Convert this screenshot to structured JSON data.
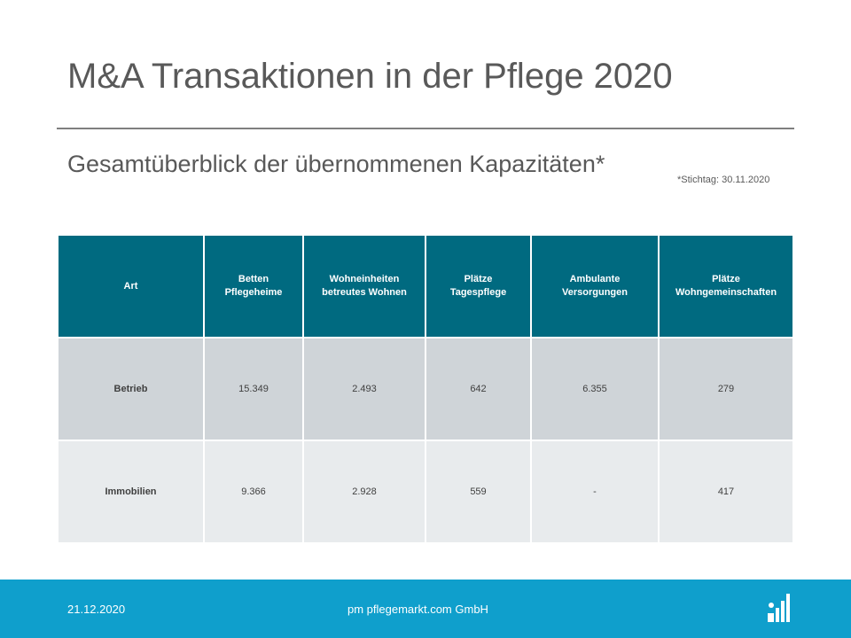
{
  "slide": {
    "title": "M&A Transaktionen in der Pflege 2020",
    "subtitle": "Gesamtüberblick der übernommenen Kapazitäten*",
    "footnote": "*Stichtag: 30.11.2020"
  },
  "table": {
    "headers": [
      [
        "Art"
      ],
      [
        "Betten",
        "Pflegeheime"
      ],
      [
        "Wohneinheiten",
        "betreutes Wohnen"
      ],
      [
        "Plätze",
        "Tagespflege"
      ],
      [
        "Ambulante",
        "Versorgungen"
      ],
      [
        "Plätze",
        "Wohngemeinschaften"
      ]
    ],
    "rows": [
      [
        "Betrieb",
        "15.349",
        "2.493",
        "642",
        "6.355",
        "279"
      ],
      [
        "Immobilien",
        "9.366",
        "2.928",
        "559",
        "-",
        "417"
      ]
    ]
  },
  "footer": {
    "date": "21.12.2020",
    "company": "pm pflegemarkt.com GmbH",
    "logo_icon": "bar-chart-logo-icon"
  },
  "colors": {
    "header_bg": "#006a80",
    "row1_bg": "#cfd4d8",
    "row2_bg": "#e8ebed",
    "footer_bg": "#0f9fcc"
  }
}
